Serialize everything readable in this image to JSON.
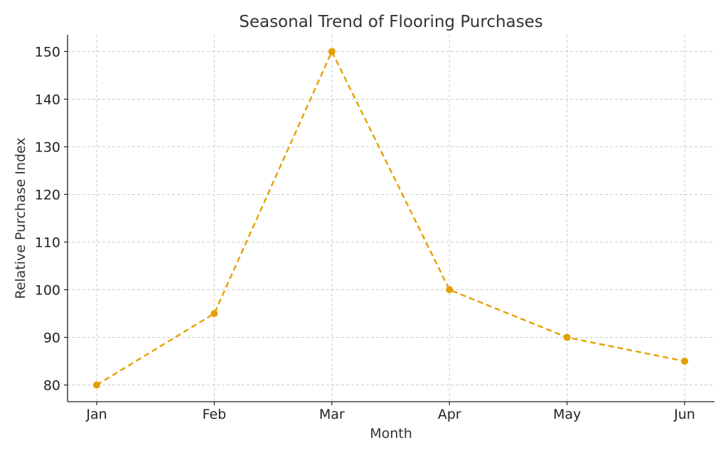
{
  "chart_data": {
    "type": "line",
    "title": "Seasonal Trend of Flooring Purchases",
    "xlabel": "Month",
    "ylabel": "Relative Purchase Index",
    "categories": [
      "Jan",
      "Feb",
      "Mar",
      "Apr",
      "May",
      "Jun"
    ],
    "series": [
      {
        "values": [
          80,
          95,
          150,
          100,
          90,
          85
        ],
        "color": "#e69f00",
        "line_style": "dashed",
        "marker": "circle"
      }
    ],
    "ylim": [
      76.5,
      153.5
    ],
    "yticks": [
      80,
      90,
      100,
      110,
      120,
      130,
      140,
      150
    ],
    "grid": true,
    "legend": "none"
  }
}
